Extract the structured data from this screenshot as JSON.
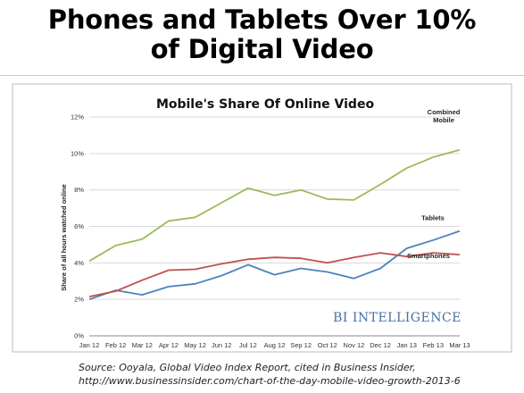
{
  "slide": {
    "title_line1": "Phones and Tablets Over 10%",
    "title_line2": "of Digital Video",
    "source_line1": "Source:  Ooyala, Global Video Index Report, cited in Business Insider,",
    "source_line2": "http://www.businessinsider.com/chart-of-the-day-mobile-video-growth-2013-6"
  },
  "chart_data": {
    "type": "line",
    "title": "Mobile's Share Of Online Video",
    "xlabel": "",
    "ylabel": "Share of all hours watched online",
    "ylim": [
      0,
      12
    ],
    "yticks": [
      "0%",
      "2%",
      "4%",
      "6%",
      "8%",
      "10%",
      "12%"
    ],
    "y_tick_values": [
      0,
      2,
      4,
      6,
      8,
      10,
      12
    ],
    "categories": [
      "Jan 12",
      "Feb 12",
      "Mar 12",
      "Apr 12",
      "May 12",
      "Jun 12",
      "Jul 12",
      "Aug 12",
      "Sep 12",
      "Oct 12",
      "Nov 12",
      "Dec 12",
      "Jan 13",
      "Feb 13",
      "Mar 13"
    ],
    "series": [
      {
        "name": "Combined Mobile",
        "name_lines": [
          "Combined",
          "Mobile"
        ],
        "color": "#9bbb59",
        "values": [
          4.1,
          4.95,
          5.3,
          6.3,
          6.5,
          7.3,
          8.1,
          7.7,
          8.0,
          7.5,
          7.45,
          8.3,
          9.2,
          9.8,
          10.2
        ]
      },
      {
        "name": "Tablets",
        "name_lines": [
          "Tablets"
        ],
        "color": "#4f81bd",
        "values": [
          2.0,
          2.5,
          2.25,
          2.7,
          2.85,
          3.3,
          3.9,
          3.35,
          3.7,
          3.5,
          3.15,
          3.7,
          4.8,
          5.25,
          5.75
        ]
      },
      {
        "name": "Smartphones",
        "name_lines": [
          "Smartphones"
        ],
        "color": "#c0504d",
        "values": [
          2.15,
          2.45,
          3.05,
          3.6,
          3.65,
          3.95,
          4.2,
          4.3,
          4.25,
          4.0,
          4.3,
          4.55,
          4.35,
          4.55,
          4.45
        ]
      }
    ],
    "watermark": "BI INTELLIGENCE",
    "grid": "horizontal"
  }
}
